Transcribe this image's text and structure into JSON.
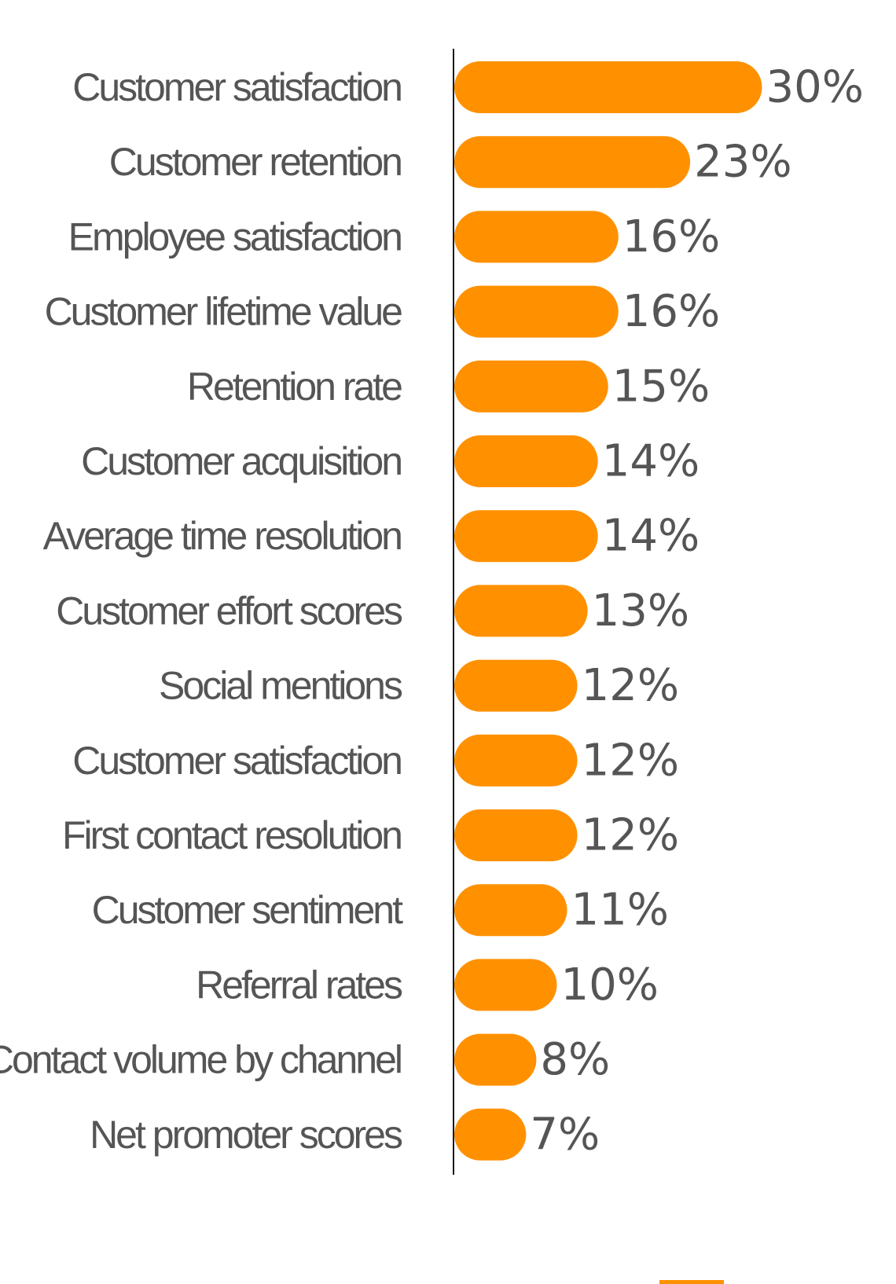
{
  "chart_data": {
    "type": "bar",
    "orientation": "horizontal",
    "categories": [
      "Customer satisfaction",
      "Customer retention",
      "Employee satisfaction",
      "Customer lifetime value",
      "Retention rate",
      "Customer acquisition",
      "Average time resolution",
      "Customer effort scores",
      "Social mentions",
      "Customer satisfaction",
      "First contact resolution",
      "Customer sentiment",
      "Referral rates",
      "Contact volume by channel",
      "Net promoter scores"
    ],
    "values": [
      30,
      23,
      16,
      16,
      15,
      14,
      14,
      13,
      12,
      12,
      12,
      11,
      10,
      8,
      7
    ],
    "value_suffix": "%",
    "xlim": [
      0,
      30
    ],
    "grid": false,
    "colors": {
      "bar": "#FF9100",
      "axis": "#1a1a1a",
      "text": "#555555"
    }
  }
}
